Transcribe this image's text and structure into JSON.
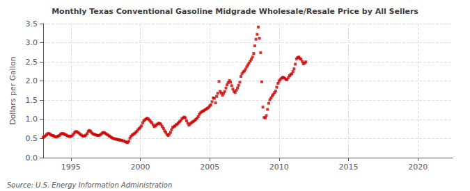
{
  "chart_data": {
    "type": "scatter",
    "title": "Monthly Texas Conventional Gasoline Midgrade Wholesale/Resale Price by All Sellers",
    "ylabel": "Dollars per Gallon",
    "annotations": [
      "Source: U.S. Energy Information Administration"
    ],
    "color": "#cc0000",
    "marker": "square",
    "grid": true,
    "xlim": [
      1993.0,
      2022.5
    ],
    "ylim": [
      0.0,
      3.5
    ],
    "xticks": [
      1995,
      2000,
      2005,
      2010,
      2015,
      2020
    ],
    "yticks": [
      {
        "value": 0.0,
        "label": "0.0"
      },
      0.5,
      {
        "value": 1.0,
        "label": "1.0"
      },
      1.5,
      {
        "value": 2.0,
        "label": "2.0"
      },
      2.5,
      {
        "value": 3.0,
        "label": "3.0"
      },
      3.5
    ],
    "x": [
      1993.0,
      1993.08,
      1993.17,
      1993.25,
      1993.33,
      1993.42,
      1993.5,
      1993.58,
      1993.67,
      1993.75,
      1993.83,
      1993.92,
      1994.0,
      1994.08,
      1994.17,
      1994.25,
      1994.33,
      1994.42,
      1994.5,
      1994.58,
      1994.67,
      1994.75,
      1994.83,
      1994.92,
      1995.0,
      1995.08,
      1995.17,
      1995.25,
      1995.33,
      1995.42,
      1995.5,
      1995.58,
      1995.67,
      1995.75,
      1995.83,
      1995.92,
      1996.0,
      1996.08,
      1996.17,
      1996.25,
      1996.33,
      1996.42,
      1996.5,
      1996.58,
      1996.67,
      1996.75,
      1996.83,
      1996.92,
      1997.0,
      1997.08,
      1997.17,
      1997.25,
      1997.33,
      1997.42,
      1997.5,
      1997.58,
      1997.67,
      1997.75,
      1997.83,
      1997.92,
      1998.0,
      1998.08,
      1998.17,
      1998.25,
      1998.33,
      1998.42,
      1998.5,
      1998.58,
      1998.67,
      1998.75,
      1998.83,
      1998.92,
      1999.0,
      1999.08,
      1999.17,
      1999.25,
      1999.33,
      1999.42,
      1999.5,
      1999.58,
      1999.67,
      1999.75,
      1999.83,
      1999.92,
      2000.0,
      2000.08,
      2000.17,
      2000.25,
      2000.33,
      2000.42,
      2000.5,
      2000.58,
      2000.67,
      2000.75,
      2000.83,
      2000.92,
      2001.0,
      2001.08,
      2001.17,
      2001.25,
      2001.33,
      2001.42,
      2001.5,
      2001.58,
      2001.67,
      2001.75,
      2001.83,
      2001.92,
      2002.0,
      2002.08,
      2002.17,
      2002.25,
      2002.33,
      2002.42,
      2002.5,
      2002.58,
      2002.67,
      2002.75,
      2002.83,
      2002.92,
      2003.0,
      2003.08,
      2003.17,
      2003.25,
      2003.33,
      2003.42,
      2003.5,
      2003.58,
      2003.67,
      2003.75,
      2003.83,
      2003.92,
      2004.0,
      2004.08,
      2004.17,
      2004.25,
      2004.33,
      2004.42,
      2004.5,
      2004.58,
      2004.67,
      2004.75,
      2004.83,
      2004.92,
      2005.0,
      2005.08,
      2005.17,
      2005.25,
      2005.33,
      2005.42,
      2005.5,
      2005.58,
      2005.67,
      2005.75,
      2005.83,
      2005.92,
      2006.0,
      2006.08,
      2006.17,
      2006.25,
      2006.33,
      2006.42,
      2006.5,
      2006.58,
      2006.67,
      2006.75,
      2006.83,
      2006.92,
      2007.0,
      2007.08,
      2007.17,
      2007.25,
      2007.33,
      2007.42,
      2007.5,
      2007.58,
      2007.67,
      2007.75,
      2007.83,
      2007.92,
      2008.0,
      2008.08,
      2008.17,
      2008.25,
      2008.33,
      2008.42,
      2008.5,
      2008.58,
      2008.67,
      2008.75,
      2008.83,
      2008.92,
      2009.0,
      2009.08,
      2009.17,
      2009.25,
      2009.33,
      2009.42,
      2009.5,
      2009.58,
      2009.67,
      2009.75,
      2009.83,
      2009.92,
      2010.0,
      2010.08,
      2010.17,
      2010.25,
      2010.33,
      2010.42,
      2010.5,
      2010.58,
      2010.67,
      2010.75,
      2010.83,
      2010.92,
      2011.0,
      2011.08,
      2011.17,
      2011.25,
      2011.33,
      2011.42,
      2011.5,
      2011.58,
      2011.67,
      2011.75,
      2011.83,
      2011.92
    ],
    "values": [
      0.53,
      0.55,
      0.57,
      0.6,
      0.63,
      0.63,
      0.61,
      0.59,
      0.58,
      0.57,
      0.55,
      0.54,
      0.55,
      0.56,
      0.58,
      0.61,
      0.63,
      0.63,
      0.62,
      0.6,
      0.59,
      0.57,
      0.56,
      0.55,
      0.56,
      0.57,
      0.61,
      0.65,
      0.68,
      0.68,
      0.66,
      0.64,
      0.61,
      0.59,
      0.57,
      0.56,
      0.57,
      0.59,
      0.63,
      0.69,
      0.71,
      0.69,
      0.65,
      0.62,
      0.61,
      0.6,
      0.59,
      0.58,
      0.58,
      0.59,
      0.61,
      0.64,
      0.66,
      0.65,
      0.63,
      0.61,
      0.59,
      0.57,
      0.55,
      0.53,
      0.51,
      0.5,
      0.49,
      0.48,
      0.48,
      0.47,
      0.46,
      0.46,
      0.45,
      0.44,
      0.43,
      0.42,
      0.4,
      0.39,
      0.43,
      0.51,
      0.56,
      0.59,
      0.61,
      0.63,
      0.66,
      0.69,
      0.73,
      0.76,
      0.79,
      0.83,
      0.91,
      0.96,
      0.99,
      1.01,
      1.03,
      1.01,
      0.98,
      0.94,
      0.91,
      0.86,
      0.81,
      0.83,
      0.86,
      0.88,
      0.9,
      0.89,
      0.86,
      0.81,
      0.76,
      0.7,
      0.66,
      0.61,
      0.58,
      0.61,
      0.66,
      0.73,
      0.79,
      0.81,
      0.83,
      0.86,
      0.88,
      0.91,
      0.94,
      0.97,
      1.02,
      1.04,
      1.06,
      1.04,
      0.96,
      0.9,
      0.85,
      0.88,
      0.91,
      0.93,
      0.95,
      0.97,
      1.0,
      1.03,
      1.07,
      1.13,
      1.17,
      1.2,
      1.21,
      1.23,
      1.25,
      1.27,
      1.29,
      1.31,
      1.35,
      1.38,
      1.46,
      1.56,
      1.55,
      1.43,
      1.6,
      1.68,
      1.99,
      1.73,
      1.69,
      1.63,
      1.68,
      1.73,
      1.82,
      1.9,
      1.96,
      2.01,
      1.97,
      1.88,
      1.79,
      1.73,
      1.7,
      1.76,
      1.82,
      1.89,
      1.97,
      2.12,
      2.19,
      2.24,
      2.26,
      2.31,
      2.37,
      2.42,
      2.47,
      2.52,
      2.57,
      2.63,
      2.72,
      2.92,
      3.09,
      3.22,
      3.41,
      3.12,
      2.74,
      1.98,
      1.32,
      1.05,
      1.04,
      1.1,
      1.26,
      1.42,
      1.51,
      1.56,
      1.61,
      1.65,
      1.7,
      1.74,
      1.84,
      1.94,
      2.0,
      2.04,
      2.07,
      2.1,
      2.09,
      2.07,
      2.04,
      2.04,
      2.09,
      2.14,
      2.17,
      2.19,
      2.25,
      2.32,
      2.44,
      2.58,
      2.61,
      2.63,
      2.59,
      2.57,
      2.51,
      2.45,
      2.47,
      2.5
    ]
  }
}
